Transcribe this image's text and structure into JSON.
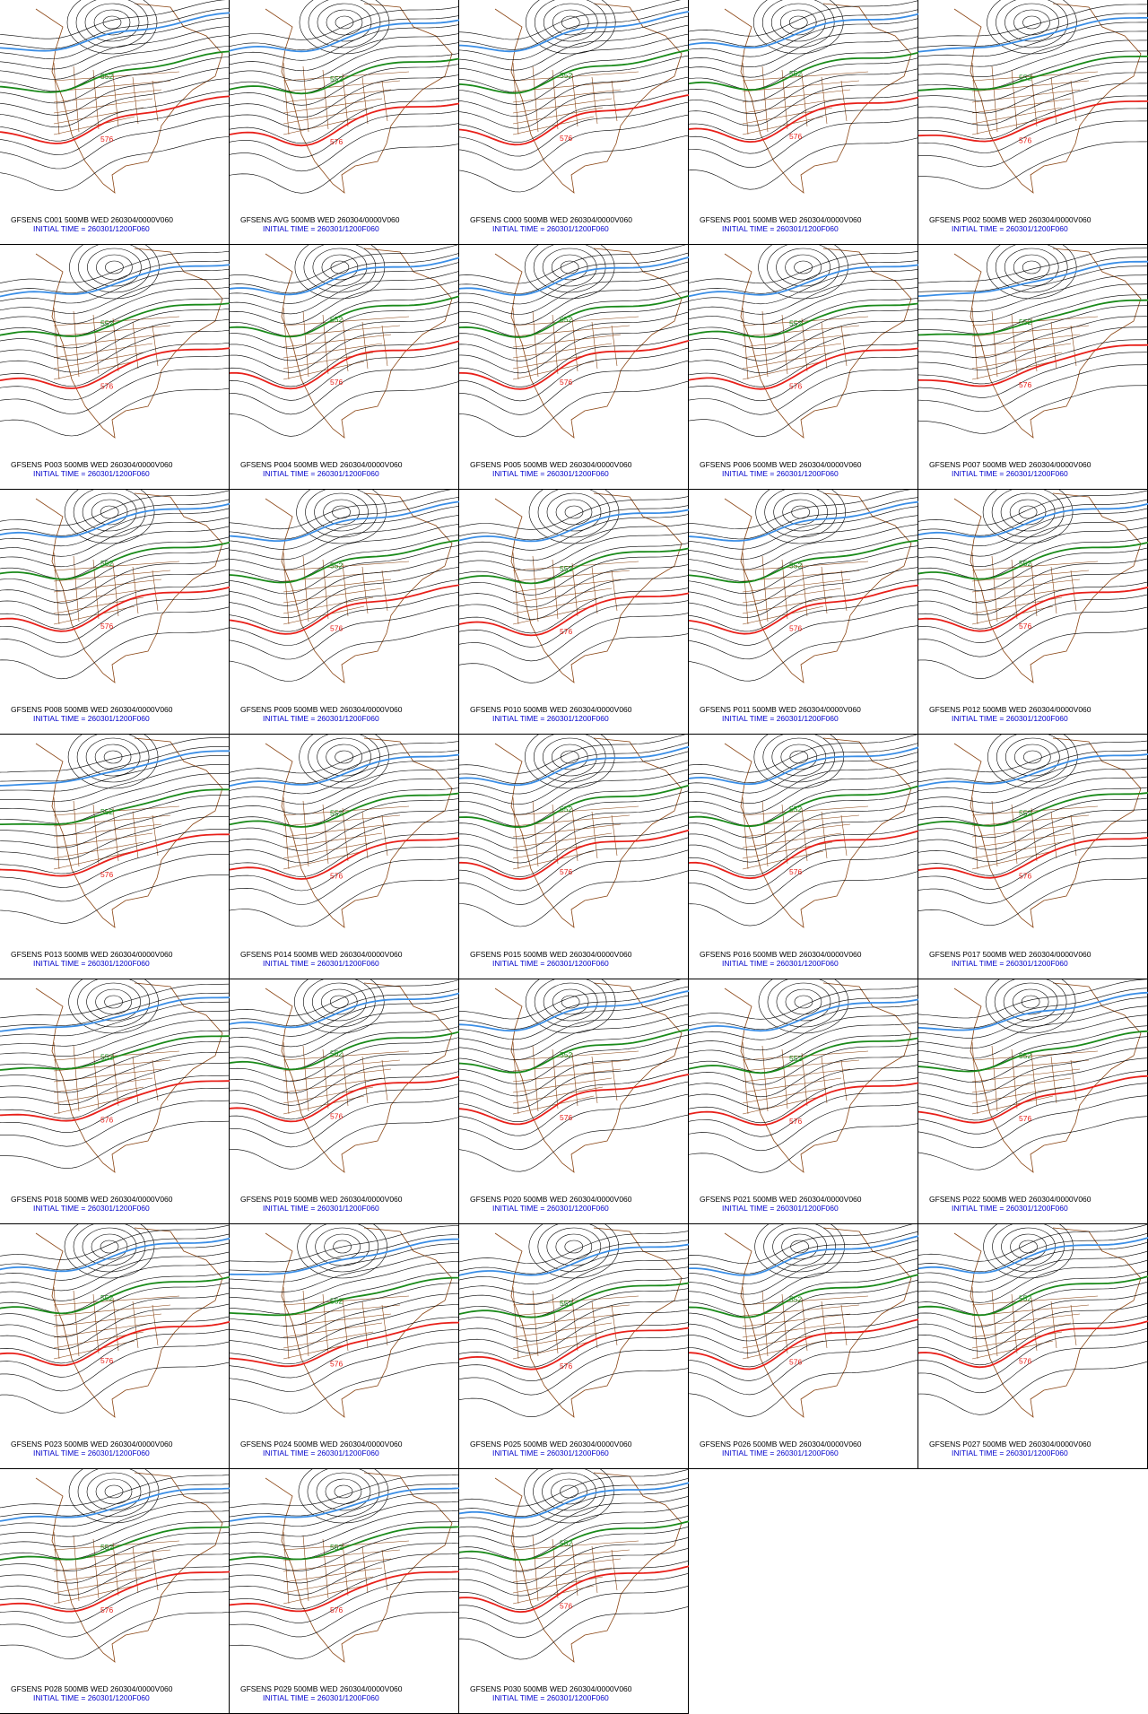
{
  "panels": [
    {
      "label": "GFSENS C001 500MB WED 260304/0000V060",
      "initial_time": "INITIAL TIME = 260301/1200F060",
      "green_label": "552",
      "red_label": "576"
    },
    {
      "label": "GFSENS AVG 500MB WED 260304/0000V060",
      "initial_time": "INITIAL TIME = 260301/1200F060",
      "green_label": "552",
      "red_label": "576"
    },
    {
      "label": "GFSENS C000 500MB WED 260304/0000V060",
      "initial_time": "INITIAL TIME = 260301/1200F060",
      "green_label": "552",
      "red_label": "576"
    },
    {
      "label": "GFSENS P001 500MB WED 260304/0000V060",
      "initial_time": "INITIAL TIME = 260301/1200F060",
      "green_label": "552",
      "red_label": "576"
    },
    {
      "label": "GFSENS P002 500MB WED 260304/0000V060",
      "initial_time": "INITIAL TIME = 260301/1200F060",
      "green_label": "552",
      "red_label": "576"
    },
    {
      "label": "GFSENS P003 500MB WED 260304/0000V060",
      "initial_time": "INITIAL TIME = 260301/1200F060",
      "green_label": "552",
      "red_label": "576"
    },
    {
      "label": "GFSENS P004 500MB WED 260304/0000V060",
      "initial_time": "INITIAL TIME = 260301/1200F060",
      "green_label": "552",
      "red_label": "576"
    },
    {
      "label": "GFSENS P005 500MB WED 260304/0000V060",
      "initial_time": "INITIAL TIME = 260301/1200F060",
      "green_label": "552",
      "red_label": "576"
    },
    {
      "label": "GFSENS P006 500MB WED 260304/0000V060",
      "initial_time": "INITIAL TIME = 260301/1200F060",
      "green_label": "552",
      "red_label": "576"
    },
    {
      "label": "GFSENS P007 500MB WED 260304/0000V060",
      "initial_time": "INITIAL TIME = 260301/1200F060",
      "green_label": "552",
      "red_label": "576"
    },
    {
      "label": "GFSENS P008 500MB WED 260304/0000V060",
      "initial_time": "INITIAL TIME = 260301/1200F060",
      "green_label": "552",
      "red_label": "576"
    },
    {
      "label": "GFSENS P009 500MB WED 260304/0000V060",
      "initial_time": "INITIAL TIME = 260301/1200F060",
      "green_label": "552",
      "red_label": "576"
    },
    {
      "label": "GFSENS P010 500MB WED 260304/0000V060",
      "initial_time": "INITIAL TIME = 260301/1200F060",
      "green_label": "552",
      "red_label": "576"
    },
    {
      "label": "GFSENS P011 500MB WED 260304/0000V060",
      "initial_time": "INITIAL TIME = 260301/1200F060",
      "green_label": "552",
      "red_label": "576"
    },
    {
      "label": "GFSENS P012 500MB WED 260304/0000V060",
      "initial_time": "INITIAL TIME = 260301/1200F060",
      "green_label": "552",
      "red_label": "576"
    },
    {
      "label": "GFSENS P013 500MB WED 260304/0000V060",
      "initial_time": "INITIAL TIME = 260301/1200F060",
      "green_label": "552",
      "red_label": "576"
    },
    {
      "label": "GFSENS P014 500MB WED 260304/0000V060",
      "initial_time": "INITIAL TIME = 260301/1200F060",
      "green_label": "552",
      "red_label": "576"
    },
    {
      "label": "GFSENS P015 500MB WED 260304/0000V060",
      "initial_time": "INITIAL TIME = 260301/1200F060",
      "green_label": "552",
      "red_label": "576"
    },
    {
      "label": "GFSENS P016 500MB WED 260304/0000V060",
      "initial_time": "INITIAL TIME = 260301/1200F060",
      "green_label": "552",
      "red_label": "576"
    },
    {
      "label": "GFSENS P017 500MB WED 260304/0000V060",
      "initial_time": "INITIAL TIME = 260301/1200F060",
      "green_label": "552",
      "red_label": "576"
    },
    {
      "label": "GFSENS P018 500MB WED 260304/0000V060",
      "initial_time": "INITIAL TIME = 260301/1200F060",
      "green_label": "552",
      "red_label": "576"
    },
    {
      "label": "GFSENS P019 500MB WED 260304/0000V060",
      "initial_time": "INITIAL TIME = 260301/1200F060",
      "green_label": "552",
      "red_label": "576"
    },
    {
      "label": "GFSENS P020 500MB WED 260304/0000V060",
      "initial_time": "INITIAL TIME = 260301/1200F060",
      "green_label": "552",
      "red_label": "576"
    },
    {
      "label": "GFSENS P021 500MB WED 260304/0000V060",
      "initial_time": "INITIAL TIME = 260301/1200F060",
      "green_label": "552",
      "red_label": "576"
    },
    {
      "label": "GFSENS P022 500MB WED 260304/0000V060",
      "initial_time": "INITIAL TIME = 260301/1200F060",
      "green_label": "552",
      "red_label": "576"
    },
    {
      "label": "GFSENS P023 500MB WED 260304/0000V060",
      "initial_time": "INITIAL TIME = 260301/1200F060",
      "green_label": "552",
      "red_label": "576"
    },
    {
      "label": "GFSENS P024 500MB WED 260304/0000V060",
      "initial_time": "INITIAL TIME = 260301/1200F060",
      "green_label": "552",
      "red_label": "576"
    },
    {
      "label": "GFSENS P025 500MB WED 260304/0000V060",
      "initial_time": "INITIAL TIME = 260301/1200F060",
      "green_label": "552",
      "red_label": "576"
    },
    {
      "label": "GFSENS P026 500MB WED 260304/0000V060",
      "initial_time": "INITIAL TIME = 260301/1200F060",
      "green_label": "552",
      "red_label": "576"
    },
    {
      "label": "GFSENS P027 500MB WED 260304/0000V060",
      "initial_time": "INITIAL TIME = 260301/1200F060",
      "green_label": "552",
      "red_label": "576"
    },
    {
      "label": "GFSENS P028 500MB WED 260304/0000V060",
      "initial_time": "INITIAL TIME = 260301/1200F060",
      "green_label": "552",
      "red_label": "576"
    },
    {
      "label": "GFSENS P029 500MB WED 260304/0000V060",
      "initial_time": "INITIAL TIME = 260301/1200F060",
      "green_label": "552",
      "red_label": "576"
    },
    {
      "label": "GFSENS P030 500MB WED 260304/0000V060",
      "initial_time": "INITIAL TIME = 260301/1200F060",
      "green_label": "552",
      "red_label": "576"
    }
  ]
}
